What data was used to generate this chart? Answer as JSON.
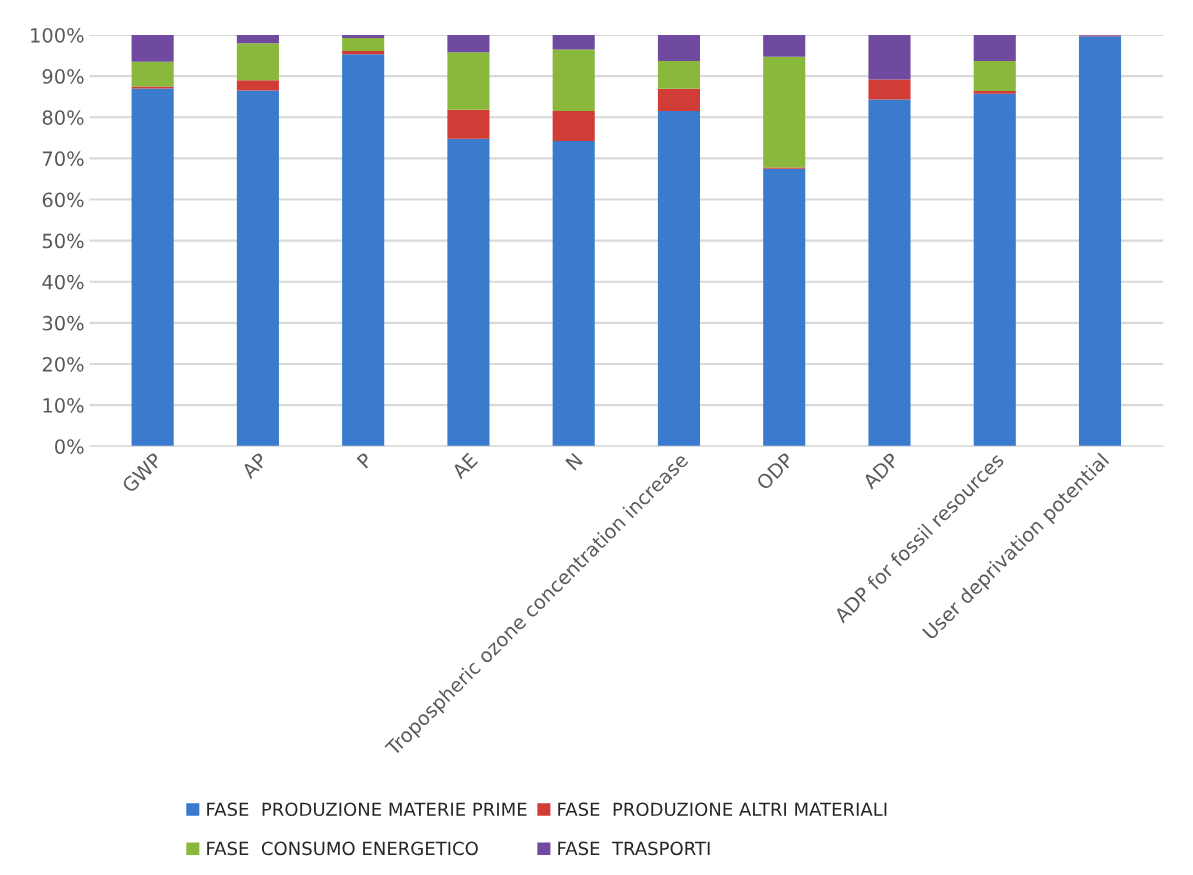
{
  "chart_data": {
    "type": "bar",
    "stacked": true,
    "categories": [
      "GWP",
      "AP",
      "P",
      "AE",
      "N",
      "Tropospheric ozone concentration increase",
      "ODP",
      "ADP",
      "ADP for fossil resources",
      "User deprivation potential"
    ],
    "series": [
      {
        "name": "FASE  PRODUZIONE MATERIE PRIME",
        "color": "#3a7bce",
        "values": [
          87,
          86.5,
          95.3,
          74.8,
          74.2,
          81.5,
          67.5,
          84.3,
          85.7,
          99.7
        ]
      },
      {
        "name": "FASE  PRODUZIONE ALTRI MATERIALI",
        "color": "#d23c37",
        "values": [
          0.5,
          2.5,
          0.8,
          7,
          7.3,
          5.4,
          0.3,
          4.9,
          0.7,
          0.2
        ]
      },
      {
        "name": "FASE  CONSUMO ENERGETICO",
        "color": "#8ab83c",
        "values": [
          6,
          9,
          3.2,
          14,
          15,
          6.8,
          26.9,
          0,
          7.3,
          0
        ]
      },
      {
        "name": "FASE  TRASPORTI",
        "color": "#6f4a9e",
        "values": [
          6.5,
          2,
          0.7,
          4.2,
          3.5,
          6.3,
          5.3,
          10.8,
          6.3,
          0.1
        ]
      }
    ],
    "ylim": [
      0,
      100
    ],
    "yticks": [
      {
        "value": 0,
        "label": "0%"
      },
      {
        "value": 10,
        "label": "10%"
      },
      {
        "value": 20,
        "label": "20%"
      },
      {
        "value": 30,
        "label": "30%"
      },
      {
        "value": 40,
        "label": "40%"
      },
      {
        "value": 50,
        "label": "50%"
      },
      {
        "value": 60,
        "label": "60%"
      },
      {
        "value": 70,
        "label": "70%"
      },
      {
        "value": 80,
        "label": "80%"
      },
      {
        "value": 90,
        "label": "90%"
      },
      {
        "value": 100,
        "label": "100%"
      }
    ],
    "grid": "y",
    "legend": "bottom"
  }
}
